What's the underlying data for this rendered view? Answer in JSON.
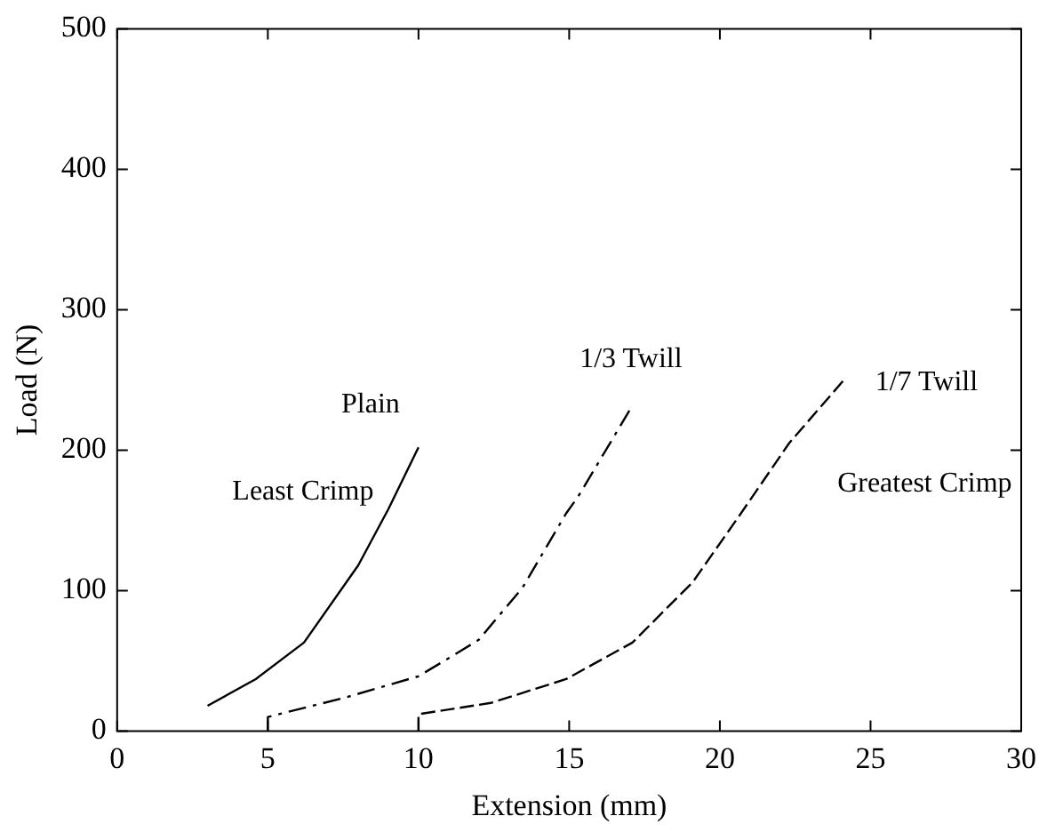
{
  "chart_data": {
    "type": "line",
    "xlabel": "Extension (mm)",
    "ylabel": "Load (N)",
    "xlim": [
      0,
      30
    ],
    "xticks": [
      0,
      5,
      10,
      15,
      20,
      25,
      30
    ],
    "ylim": [
      0,
      500
    ],
    "yticks": [
      0,
      100,
      200,
      300,
      400,
      500
    ],
    "grid": false,
    "legend": false,
    "marker": "none",
    "series": [
      {
        "name": "Plain",
        "color": "#000000",
        "line_style": "solid",
        "x": [
          3,
          4.6,
          6.2,
          8,
          9,
          10
        ],
        "values": [
          18,
          37,
          63,
          118,
          158,
          202
        ]
      },
      {
        "name": "1/3 Twill",
        "color": "#000000",
        "line_style": "dashdot",
        "x": [
          5,
          5,
          7.6,
          10,
          11.4,
          12,
          13.45,
          14.9,
          15.3,
          17.05
        ],
        "values": [
          0,
          10,
          24,
          39,
          57,
          65,
          102,
          155,
          167,
          230
        ]
      },
      {
        "name": "1/7 Twill",
        "color": "#000000",
        "line_style": "dashed",
        "x": [
          10,
          10,
          12.4,
          14.9,
          17.1,
          19.1,
          20.7,
          22.3,
          24.2
        ],
        "values": [
          0,
          12,
          20,
          37,
          63,
          106,
          155,
          205,
          252
        ]
      }
    ],
    "annotations": [
      "Least Crimp",
      "Greatest Crimp"
    ]
  }
}
